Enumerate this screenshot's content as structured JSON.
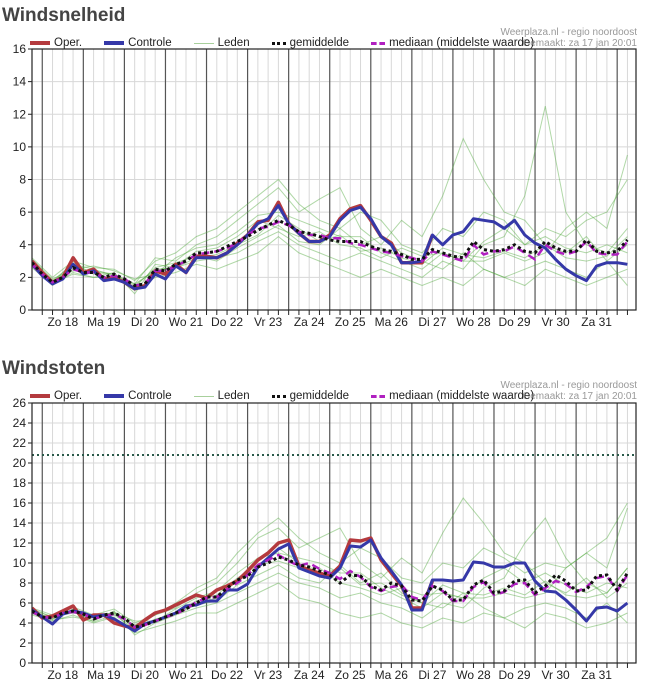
{
  "chart_data": [
    {
      "type": "line",
      "title": "Windsnelheid",
      "source": "Weerplaza.nl - regio noordoost",
      "made": "Gemaakt: za 17 jan 20:01",
      "legend": {
        "oper": "Oper.",
        "controle": "Controle",
        "leden": "Leden",
        "mean": "gemiddelde",
        "median": "mediaan (middelste waarde)"
      },
      "ylim": [
        0,
        16
      ],
      "yticks": [
        "0",
        "2",
        "4",
        "6",
        "8",
        "10",
        "12",
        "14",
        "16"
      ],
      "xlim_hours": [
        -6,
        347
      ],
      "x_labels": [
        "Zo 18",
        "Ma 19",
        "Di 20",
        "Wo 21",
        "Do 22",
        "Vr 23",
        "Za 24",
        "Zo 25",
        "Ma 26",
        "Di 27",
        "Wo 28",
        "Do 29",
        "Vr 30",
        "Za 31"
      ],
      "t_start": -6,
      "t_step": 6,
      "member_step": 12,
      "threshold": null,
      "colors": {
        "oper": "#b43a3e",
        "controle": "#3538a8",
        "leden": "#4fa83c",
        "mean": "#111111",
        "median": "#b020c0"
      },
      "series": {
        "oper": [
          3.0,
          2.3,
          1.7,
          2.0,
          3.2,
          2.3,
          2.5,
          1.9,
          2.0,
          1.7,
          1.3,
          1.5,
          2.4,
          2.2,
          2.8,
          2.3,
          3.3,
          3.3,
          3.2,
          3.5,
          4.1,
          4.6,
          5.4,
          5.5,
          6.6,
          5.3,
          4.7,
          4.2,
          4.2,
          4.6,
          5.6,
          6.2,
          6.4,
          5.5,
          4.5,
          4.1,
          2.9,
          2.9,
          2.9,
          4.6
        ],
        "controle": [
          2.8,
          2.1,
          1.6,
          1.9,
          2.8,
          2.2,
          2.4,
          1.8,
          1.9,
          1.7,
          1.3,
          1.4,
          2.2,
          1.9,
          2.7,
          2.3,
          3.2,
          3.2,
          3.2,
          3.5,
          4.0,
          4.6,
          5.3,
          5.6,
          6.4,
          5.3,
          4.7,
          4.2,
          4.2,
          4.5,
          5.5,
          6.1,
          6.3,
          5.6,
          4.5,
          4.0,
          2.9,
          2.9,
          3.0,
          4.6,
          4.0,
          4.6,
          4.8,
          5.6,
          5.5,
          5.4,
          5.0,
          5.5,
          4.6,
          4.1,
          3.8,
          3.1,
          2.5,
          2.1,
          1.8,
          2.7,
          2.9,
          2.9,
          2.8
        ],
        "mean": [
          2.9,
          2.2,
          1.7,
          2.0,
          2.6,
          2.3,
          2.3,
          2.0,
          2.2,
          1.9,
          1.5,
          1.6,
          2.5,
          2.4,
          2.8,
          3.0,
          3.5,
          3.5,
          3.6,
          3.9,
          4.2,
          4.5,
          4.9,
          5.2,
          5.5,
          5.2,
          4.8,
          4.7,
          4.5,
          4.3,
          4.2,
          4.2,
          4.2,
          3.9,
          3.7,
          3.6,
          3.4,
          3.1,
          3.1,
          3.7,
          3.5,
          3.3,
          3.2,
          4.2,
          3.7,
          3.6,
          3.7,
          4.0,
          3.6,
          3.5,
          4.2,
          3.8,
          3.6,
          3.6,
          4.3,
          3.6,
          3.5,
          3.6,
          4.3
        ],
        "median": [
          2.8,
          2.2,
          1.7,
          2.0,
          2.5,
          2.3,
          2.3,
          2.0,
          2.1,
          1.9,
          1.5,
          1.6,
          2.4,
          2.4,
          2.7,
          3.0,
          3.4,
          3.5,
          3.6,
          3.8,
          4.1,
          4.6,
          5.0,
          5.1,
          5.4,
          5.2,
          4.8,
          4.6,
          4.6,
          4.4,
          4.4,
          4.1,
          4.0,
          3.8,
          3.6,
          3.5,
          3.3,
          3.2,
          3.0,
          3.6,
          3.4,
          3.2,
          3.0,
          4.0,
          3.4,
          3.6,
          3.6,
          3.9,
          3.5,
          3.1,
          4.0,
          3.6,
          3.4,
          3.6,
          4.2,
          3.5,
          3.4,
          3.4,
          4.2
        ],
        "members": [
          [
            3.2,
            2.0,
            3.0,
            2.6,
            2.5,
            1.8,
            3.0,
            3.5,
            4.5,
            5.0,
            6.0,
            7.0,
            8.0,
            6.5,
            5.5,
            5.0,
            6.0,
            5.5,
            4.0,
            3.5,
            5.0,
            4.5,
            6.0,
            5.5,
            4.0,
            5.0,
            4.5,
            5.5,
            6.0,
            8.0
          ],
          [
            2.6,
            1.5,
            2.3,
            2.0,
            2.0,
            1.2,
            2.0,
            2.3,
            2.8,
            2.5,
            3.0,
            3.5,
            4.5,
            3.5,
            3.0,
            2.5,
            2.0,
            2.5,
            2.0,
            1.5,
            2.0,
            1.5,
            2.5,
            2.0,
            1.5,
            2.5,
            2.0,
            1.5,
            2.0,
            2.5
          ],
          [
            3.0,
            1.8,
            2.8,
            2.5,
            2.1,
            1.6,
            3.2,
            3.0,
            4.0,
            4.5,
            5.5,
            6.5,
            7.5,
            6.0,
            6.8,
            7.5,
            5.0,
            4.0,
            5.5,
            4.5,
            7.0,
            10.5,
            8.0,
            6.0,
            5.5,
            4.0,
            3.5,
            4.5,
            3.0,
            4.0
          ],
          [
            2.8,
            1.6,
            2.2,
            2.0,
            2.3,
            1.0,
            2.8,
            2.6,
            3.0,
            3.2,
            3.5,
            4.2,
            4.8,
            4.0,
            3.5,
            3.0,
            3.5,
            3.0,
            2.5,
            2.0,
            3.0,
            2.5,
            4.0,
            4.5,
            7.0,
            12.5,
            6.0,
            4.0,
            3.5,
            5.0
          ],
          [
            3.1,
            1.9,
            2.5,
            2.7,
            2.4,
            1.9,
            2.2,
            3.2,
            3.8,
            4.0,
            4.8,
            5.8,
            6.0,
            5.5,
            5.0,
            4.5,
            4.5,
            3.5,
            3.0,
            2.5,
            3.5,
            3.0,
            3.0,
            3.5,
            3.0,
            3.5,
            5.0,
            6.0,
            5.0,
            9.5
          ],
          [
            2.7,
            1.7,
            2.9,
            2.2,
            1.9,
            1.4,
            2.6,
            2.9,
            3.3,
            3.0,
            3.8,
            4.5,
            5.2,
            4.2,
            4.0,
            5.0,
            4.0,
            4.5,
            3.5,
            3.0,
            2.5,
            3.5,
            2.5,
            2.0,
            2.5,
            3.0,
            2.5,
            2.0,
            3.0,
            1.5
          ],
          [
            3.0,
            1.8,
            2.4,
            2.4,
            2.2,
            1.6,
            2.4,
            2.7,
            3.6,
            3.8,
            4.5,
            5.5,
            5.0,
            4.5,
            4.8,
            4.0,
            3.8,
            3.2,
            3.8,
            3.3,
            3.5,
            3.0,
            4.2,
            5.0,
            4.0,
            4.5,
            3.8,
            3.5,
            4.0,
            3.5
          ],
          [
            2.9,
            1.7,
            2.7,
            2.3,
            2.2,
            1.5,
            2.5,
            2.6,
            3.2,
            3.4,
            4.0,
            4.6,
            5.8,
            5.0,
            4.2,
            4.6,
            3.6,
            3.8,
            3.2,
            2.8,
            3.8,
            3.4,
            3.2,
            3.6,
            3.2,
            4.0,
            3.2,
            3.0,
            3.3,
            4.5
          ]
        ]
      }
    },
    {
      "type": "line",
      "title": "Windstoten",
      "source": "Weerplaza.nl - regio noordoost",
      "made": "Gemaakt: za 17 jan 20:01",
      "legend": {
        "oper": "Oper.",
        "controle": "Controle",
        "leden": "Leden",
        "mean": "gemiddelde",
        "median": "mediaan (middelste waarde)"
      },
      "ylim": [
        0,
        26
      ],
      "yticks": [
        "0",
        "2",
        "4",
        "6",
        "8",
        "10",
        "12",
        "14",
        "16",
        "18",
        "20",
        "22",
        "24",
        "26"
      ],
      "xlim_hours": [
        -6,
        347
      ],
      "x_labels": [
        "Zo 18",
        "Ma 19",
        "Di 20",
        "Wo 21",
        "Do 22",
        "Vr 23",
        "Za 24",
        "Zo 25",
        "Ma 26",
        "Di 27",
        "Wo 28",
        "Do 29",
        "Vr 30",
        "Za 31"
      ],
      "t_start": -6,
      "t_step": 6,
      "member_step": 12,
      "threshold": 20.8,
      "colors": {
        "oper": "#b43a3e",
        "controle": "#3538a8",
        "leden": "#4fa83c",
        "mean": "#111111",
        "median": "#b020c0",
        "threshold": "#2a5a4a"
      },
      "series": {
        "oper": [
          5.5,
          4.5,
          4.7,
          5.2,
          5.7,
          4.3,
          4.8,
          4.8,
          4.0,
          3.7,
          3.5,
          4.3,
          5.0,
          5.3,
          5.8,
          6.3,
          6.8,
          6.5,
          7.3,
          7.7,
          8.2,
          9.2,
          10.3,
          11.0,
          12.0,
          12.3,
          9.7,
          9.3,
          9.0,
          8.7,
          9.7,
          12.3,
          12.2,
          12.5,
          10.3,
          9.0,
          7.7,
          5.5,
          5.5,
          8.2
        ],
        "controle": [
          5.3,
          4.6,
          3.9,
          4.9,
          5.2,
          5.0,
          4.6,
          4.8,
          4.4,
          3.8,
          3.2,
          3.9,
          4.2,
          4.6,
          5.0,
          5.7,
          5.8,
          6.2,
          6.2,
          7.3,
          7.3,
          7.9,
          9.6,
          10.5,
          11.4,
          11.9,
          9.5,
          9.1,
          8.7,
          8.5,
          9.5,
          11.7,
          11.6,
          12.3,
          10.5,
          9.2,
          7.8,
          5.3,
          5.3,
          8.3,
          8.3,
          8.2,
          8.3,
          10.1,
          10.0,
          9.6,
          9.6,
          10.0,
          10.0,
          8.2,
          7.2,
          7.1,
          6.3,
          5.3,
          4.2,
          5.5,
          5.6,
          5.2,
          6.0
        ],
        "mean": [
          5.2,
          4.6,
          4.5,
          5.0,
          5.2,
          4.9,
          4.4,
          4.8,
          5.0,
          4.5,
          3.6,
          3.8,
          4.2,
          4.6,
          5.0,
          5.4,
          6.0,
          6.6,
          6.6,
          7.5,
          8.3,
          8.7,
          9.6,
          10.0,
          10.6,
          10.3,
          9.8,
          9.6,
          9.2,
          8.8,
          8.0,
          8.8,
          8.7,
          7.7,
          7.3,
          8.0,
          7.7,
          6.3,
          6.2,
          7.7,
          7.3,
          6.3,
          6.3,
          7.8,
          8.3,
          7.0,
          7.2,
          8.2,
          8.3,
          7.0,
          7.7,
          8.8,
          8.2,
          7.2,
          7.3,
          8.7,
          8.8,
          7.3,
          9.0
        ],
        "median": [
          5.1,
          4.6,
          4.5,
          5.0,
          5.1,
          4.9,
          4.4,
          4.7,
          4.9,
          4.4,
          3.6,
          3.8,
          4.2,
          4.6,
          4.9,
          5.4,
          6.1,
          6.5,
          6.6,
          7.4,
          8.0,
          8.8,
          9.8,
          10.3,
          10.8,
          10.2,
          9.7,
          10.0,
          9.4,
          9.0,
          8.4,
          9.2,
          8.6,
          7.6,
          7.2,
          7.6,
          7.8,
          6.6,
          6.3,
          7.7,
          7.2,
          6.2,
          6.2,
          7.6,
          8.1,
          6.8,
          7.1,
          7.9,
          8.0,
          6.8,
          7.5,
          8.2,
          7.9,
          7.1,
          7.6,
          8.5,
          8.7,
          7.2,
          8.8
        ],
        "members": [
          [
            5.5,
            4.8,
            5.6,
            4.8,
            5.4,
            4.0,
            4.8,
            6.0,
            7.5,
            8.5,
            11.0,
            13.0,
            14.5,
            12.5,
            11.0,
            10.0,
            11.5,
            10.5,
            8.5,
            8.0,
            10.0,
            9.5,
            11.5,
            10.5,
            9.0,
            10.0,
            9.5,
            11.0,
            12.5,
            16.0
          ],
          [
            4.8,
            4.2,
            4.8,
            4.0,
            4.6,
            3.0,
            3.6,
            4.2,
            5.0,
            5.0,
            6.0,
            7.0,
            8.0,
            6.5,
            6.0,
            5.0,
            4.5,
            5.0,
            4.0,
            3.5,
            4.5,
            4.0,
            5.0,
            4.5,
            3.5,
            5.0,
            4.5,
            3.5,
            4.0,
            5.0
          ],
          [
            5.2,
            4.4,
            5.4,
            4.6,
            5.0,
            3.8,
            4.8,
            5.5,
            7.0,
            8.0,
            10.0,
            12.5,
            13.5,
            11.5,
            12.5,
            13.5,
            10.0,
            8.5,
            10.5,
            9.0,
            13.0,
            16.5,
            14.0,
            11.0,
            10.0,
            8.0,
            7.0,
            8.5,
            6.5,
            8.0
          ],
          [
            5.0,
            4.3,
            4.6,
            4.2,
            5.2,
            2.8,
            4.0,
            4.8,
            5.5,
            6.0,
            7.0,
            8.0,
            9.0,
            8.0,
            7.5,
            6.5,
            7.0,
            6.0,
            5.5,
            4.5,
            6.0,
            5.5,
            7.5,
            8.5,
            12.0,
            14.5,
            10.5,
            8.0,
            7.0,
            9.5
          ],
          [
            5.4,
            4.6,
            5.0,
            4.8,
            5.0,
            4.2,
            4.2,
            5.4,
            6.5,
            7.2,
            9.0,
            10.5,
            11.0,
            10.5,
            10.0,
            9.0,
            9.0,
            7.5,
            6.5,
            5.5,
            7.0,
            6.5,
            6.5,
            7.0,
            6.5,
            7.0,
            9.5,
            11.0,
            9.5,
            15.5
          ],
          [
            4.9,
            4.5,
            5.3,
            4.1,
            4.8,
            3.4,
            4.4,
            4.9,
            5.8,
            6.2,
            7.8,
            8.8,
            9.8,
            8.5,
            8.0,
            9.8,
            8.0,
            9.0,
            7.0,
            6.0,
            5.5,
            7.0,
            5.5,
            4.5,
            5.5,
            6.0,
            5.5,
            4.5,
            6.0,
            4.0
          ],
          [
            5.3,
            4.6,
            5.1,
            4.5,
            4.9,
            3.7,
            4.1,
            5.1,
            6.2,
            6.8,
            8.5,
            9.8,
            10.2,
            9.5,
            9.5,
            8.0,
            7.5,
            6.8,
            7.5,
            6.8,
            7.0,
            6.5,
            8.5,
            9.5,
            8.0,
            9.0,
            7.8,
            7.0,
            8.0,
            7.5
          ],
          [
            5.1,
            4.4,
            5.2,
            4.3,
            5.1,
            3.5,
            4.3,
            4.9,
            6.0,
            6.5,
            8.2,
            9.4,
            11.5,
            10.0,
            8.8,
            9.5,
            7.8,
            8.0,
            6.8,
            6.0,
            7.8,
            7.0,
            6.8,
            7.5,
            6.8,
            8.2,
            6.8,
            6.5,
            7.0,
            9.5
          ]
        ]
      }
    }
  ]
}
